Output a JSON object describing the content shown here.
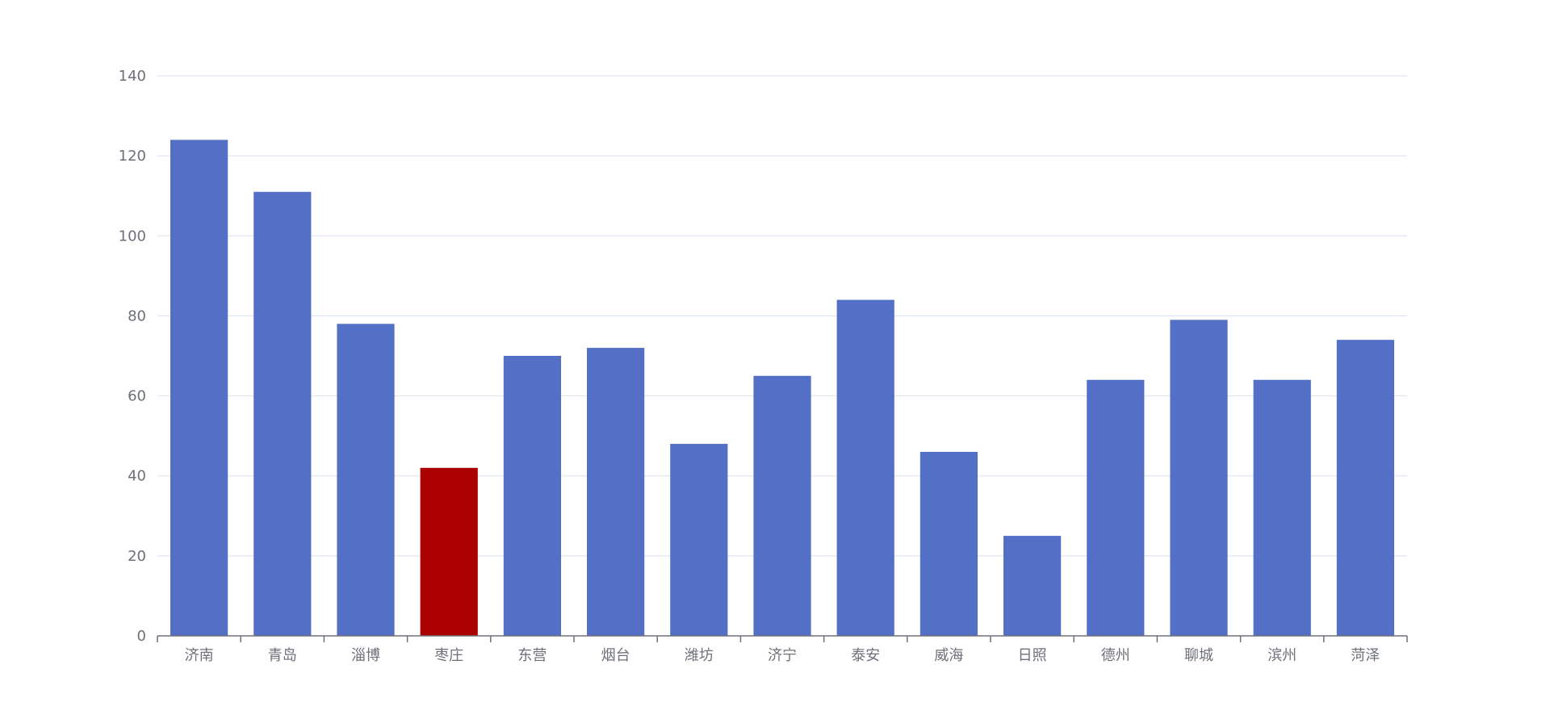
{
  "chart_data": {
    "type": "bar",
    "categories": [
      "济南",
      "青岛",
      "淄博",
      "枣庄",
      "东营",
      "烟台",
      "潍坊",
      "济宁",
      "泰安",
      "威海",
      "日照",
      "德州",
      "聊城",
      "滨州",
      "菏泽"
    ],
    "values": [
      124,
      111,
      78,
      42,
      70,
      72,
      48,
      65,
      84,
      46,
      25,
      64,
      79,
      64,
      74
    ],
    "highlight_index": 3,
    "colors": {
      "bar": "#5470c6",
      "highlight": "#aa0000",
      "grid": "#e0e6f1",
      "axis": "#6e7079"
    },
    "ylim": [
      0,
      140
    ],
    "yticks": [
      0,
      20,
      40,
      60,
      80,
      100,
      120,
      140
    ],
    "grid": true,
    "title": "",
    "xlabel": "",
    "ylabel": ""
  }
}
